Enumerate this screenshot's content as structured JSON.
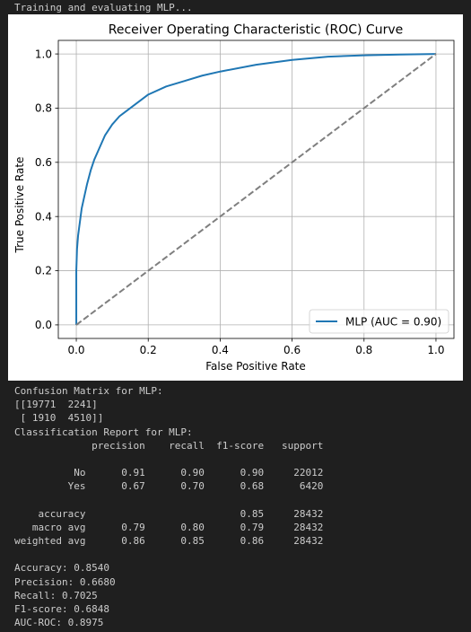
{
  "status": "Training and evaluating MLP...",
  "chart_data": {
    "type": "line",
    "title": "Receiver Operating Characteristic (ROC) Curve",
    "xlabel": "False Positive Rate",
    "ylabel": "True Positive Rate",
    "xlim": [
      -0.05,
      1.05
    ],
    "ylim": [
      -0.05,
      1.05
    ],
    "xticks": [
      "0.0",
      "0.2",
      "0.4",
      "0.6",
      "0.8",
      "1.0"
    ],
    "yticks": [
      "0.0",
      "0.2",
      "0.4",
      "0.6",
      "0.8",
      "1.0"
    ],
    "grid": true,
    "legend_position": "lower-right",
    "series": [
      {
        "name": "MLP (AUC = 0.90)",
        "color": "#1f77b4",
        "x": [
          0,
          0,
          0.002,
          0.005,
          0.01,
          0.015,
          0.02,
          0.03,
          0.04,
          0.05,
          0.06,
          0.08,
          0.1,
          0.12,
          0.15,
          0.2,
          0.25,
          0.3,
          0.35,
          0.4,
          0.5,
          0.6,
          0.7,
          0.8,
          0.9,
          1.0
        ],
        "y": [
          0,
          0.2,
          0.28,
          0.33,
          0.38,
          0.43,
          0.46,
          0.52,
          0.57,
          0.61,
          0.64,
          0.7,
          0.74,
          0.77,
          0.8,
          0.85,
          0.88,
          0.9,
          0.92,
          0.935,
          0.96,
          0.978,
          0.99,
          0.995,
          0.998,
          1.0
        ]
      },
      {
        "name": "",
        "color": "#7f7f7f",
        "dashed": true,
        "x": [
          0,
          1
        ],
        "y": [
          0,
          1
        ]
      }
    ]
  },
  "report": {
    "confusion_title": "Confusion Matrix for MLP:",
    "confusion_rows": [
      "[[19771  2241]",
      " [ 1910  4510]]"
    ],
    "classification_title": "Classification Report for MLP:",
    "columns": [
      "precision",
      "recall",
      "f1-score",
      "support"
    ],
    "rows": [
      {
        "label": "No",
        "values": [
          "0.91",
          "0.90",
          "0.90",
          "22012"
        ]
      },
      {
        "label": "Yes",
        "values": [
          "0.67",
          "0.70",
          "0.68",
          "6420"
        ]
      }
    ],
    "summary_rows": [
      {
        "label": "accuracy",
        "values": [
          "",
          "",
          "0.85",
          "28432"
        ]
      },
      {
        "label": "macro avg",
        "values": [
          "0.79",
          "0.80",
          "0.79",
          "28432"
        ]
      },
      {
        "label": "weighted avg",
        "values": [
          "0.86",
          "0.85",
          "0.86",
          "28432"
        ]
      }
    ],
    "metrics": [
      "Accuracy: 0.8540",
      "Precision: 0.6680",
      "Recall: 0.7025",
      "F1-score: 0.6848",
      "AUC-ROC: 0.8975"
    ]
  }
}
